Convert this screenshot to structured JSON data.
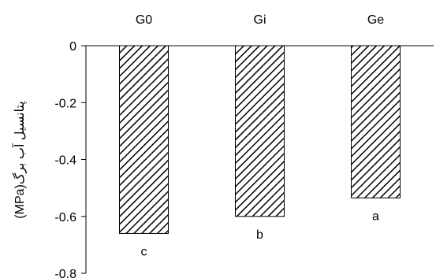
{
  "chart_data": {
    "type": "bar",
    "categories": [
      "G0",
      "Gi",
      "Ge"
    ],
    "values": [
      -0.66,
      -0.6,
      -0.535
    ],
    "significance_letters": [
      "c",
      "b",
      "a"
    ],
    "title": "",
    "xlabel": "",
    "ylabel": "پتانسیل آب برگ(MPa)",
    "ylim": [
      -0.8,
      0
    ],
    "yticks": [
      0,
      -0.2,
      -0.4,
      -0.6,
      -0.8
    ],
    "ytick_labels": [
      "0",
      "-0.2",
      "-0.4",
      "-0.6",
      "-0.8"
    ],
    "category_axis_position": "top",
    "bar_fill": "diagonal-hatch",
    "bar_color": "#000000",
    "grid": false,
    "legend": "none"
  }
}
